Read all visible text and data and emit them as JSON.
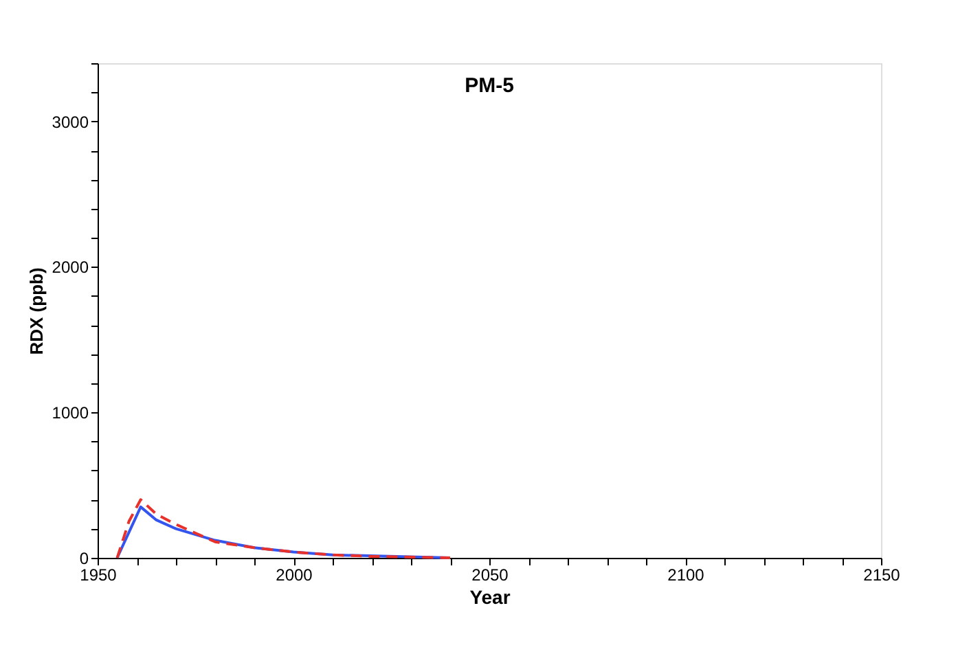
{
  "chart_data": {
    "type": "line",
    "title": "PM-5",
    "xlabel": "Year",
    "ylabel": "RDX (ppb)",
    "xlim": [
      1950,
      2150
    ],
    "xticks": [
      1950,
      {
        "value": 1960,
        "label": null
      },
      {
        "value": 1970,
        "label": null
      },
      {
        "value": 1980,
        "label": null
      },
      {
        "value": 1990,
        "label": null
      },
      2000,
      {
        "value": 2010,
        "label": null
      },
      {
        "value": 2020,
        "label": null
      },
      {
        "value": 2030,
        "label": null
      },
      {
        "value": 2040,
        "label": null
      },
      2050,
      {
        "value": 2060,
        "label": null
      },
      {
        "value": 2070,
        "label": null
      },
      {
        "value": 2080,
        "label": null
      },
      {
        "value": 2090,
        "label": null
      },
      2100,
      {
        "value": 2110,
        "label": null
      },
      {
        "value": 2120,
        "label": null
      },
      {
        "value": 2130,
        "label": null
      },
      {
        "value": 2140,
        "label": null
      },
      2150
    ],
    "ylim": [
      0,
      3400
    ],
    "yticks": [
      0,
      {
        "value": 200,
        "label": null
      },
      {
        "value": 400,
        "label": null
      },
      {
        "value": 600,
        "label": null
      },
      {
        "value": 800,
        "label": null
      },
      1000,
      {
        "value": 1200,
        "label": null
      },
      {
        "value": 1400,
        "label": null
      },
      {
        "value": 1600,
        "label": null
      },
      {
        "value": 1800,
        "label": null
      },
      2000,
      {
        "value": 2200,
        "label": null
      },
      {
        "value": 2400,
        "label": null
      },
      {
        "value": 2600,
        "label": null
      },
      {
        "value": 2800,
        "label": null
      },
      3000,
      {
        "value": 3200,
        "label": null
      },
      {
        "value": 3400,
        "label": null
      }
    ],
    "grid": false,
    "legend": false,
    "marker": "none",
    "series": [
      {
        "color": "#3355ee",
        "line_style": "solid",
        "x": [
          1955,
          1961,
          1965,
          1970,
          1980,
          1990,
          2000,
          2010,
          2040
        ],
        "values": [
          0,
          350,
          260,
          200,
          120,
          70,
          40,
          20,
          0
        ]
      },
      {
        "color": "#e8312a",
        "line_style": "dashed",
        "x": [
          1955,
          1958,
          1961,
          1965,
          1970,
          1975,
          1980,
          1990,
          2000,
          2010,
          2020,
          2040
        ],
        "values": [
          0,
          250,
          400,
          300,
          230,
          170,
          110,
          70,
          40,
          20,
          10,
          0
        ]
      }
    ]
  }
}
